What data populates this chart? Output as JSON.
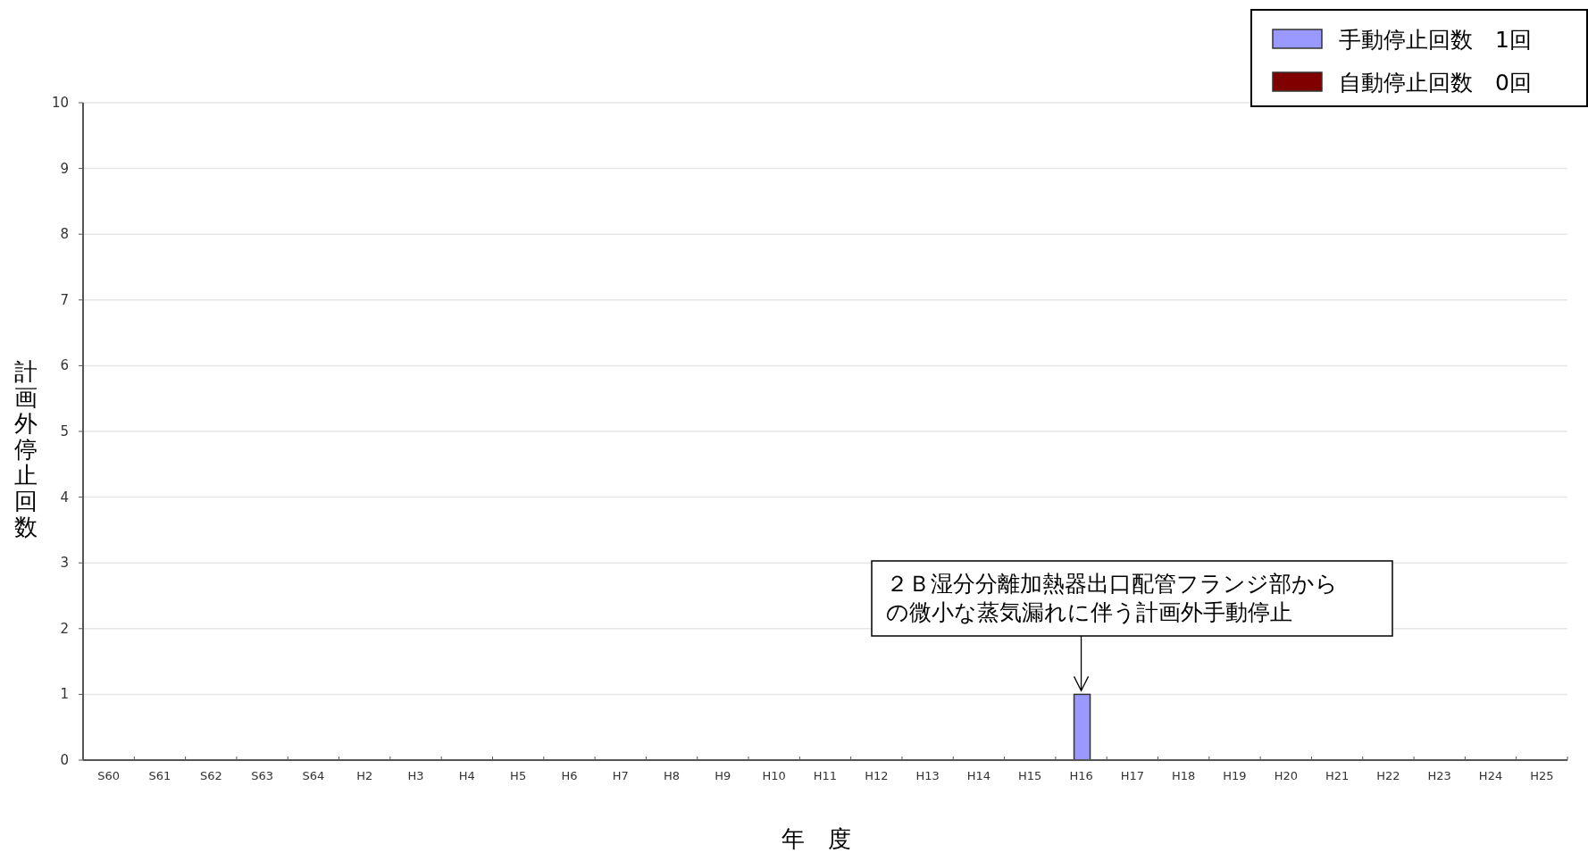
{
  "chart_data": {
    "type": "bar",
    "stacked": true,
    "ylabel": "計画外停止回数",
    "xlabel": "年　度",
    "categories": [
      "S60",
      "S61",
      "S62",
      "S63",
      "S64",
      "H2",
      "H3",
      "H4",
      "H5",
      "H6",
      "H7",
      "H8",
      "H9",
      "H10",
      "H11",
      "H12",
      "H13",
      "H14",
      "H15",
      "H16",
      "H17",
      "H18",
      "H19",
      "H20",
      "H21",
      "H22",
      "H23",
      "H24",
      "H25"
    ],
    "series": [
      {
        "name": "手動停止回数　1回",
        "color": "#9999ff",
        "values": [
          0,
          0,
          0,
          0,
          0,
          0,
          0,
          0,
          0,
          0,
          0,
          0,
          0,
          0,
          0,
          0,
          0,
          0,
          0,
          1,
          0,
          0,
          0,
          0,
          0,
          0,
          0,
          0,
          0
        ]
      },
      {
        "name": "自動停止回数　0回",
        "color": "#800000",
        "values": [
          0,
          0,
          0,
          0,
          0,
          0,
          0,
          0,
          0,
          0,
          0,
          0,
          0,
          0,
          0,
          0,
          0,
          0,
          0,
          0,
          0,
          0,
          0,
          0,
          0,
          0,
          0,
          0,
          0
        ]
      }
    ],
    "ylim": [
      0,
      10
    ],
    "yticks": [
      0,
      1,
      2,
      3,
      4,
      5,
      6,
      7,
      8,
      9,
      10
    ],
    "grid": "y",
    "legend": "top right",
    "annotations": [
      {
        "text": "２Ｂ湿分分離加熱器出口配管フランジ部からの微小な蒸気漏れに伴う計画外手動停止",
        "x": "H16",
        "y": 1
      }
    ]
  }
}
